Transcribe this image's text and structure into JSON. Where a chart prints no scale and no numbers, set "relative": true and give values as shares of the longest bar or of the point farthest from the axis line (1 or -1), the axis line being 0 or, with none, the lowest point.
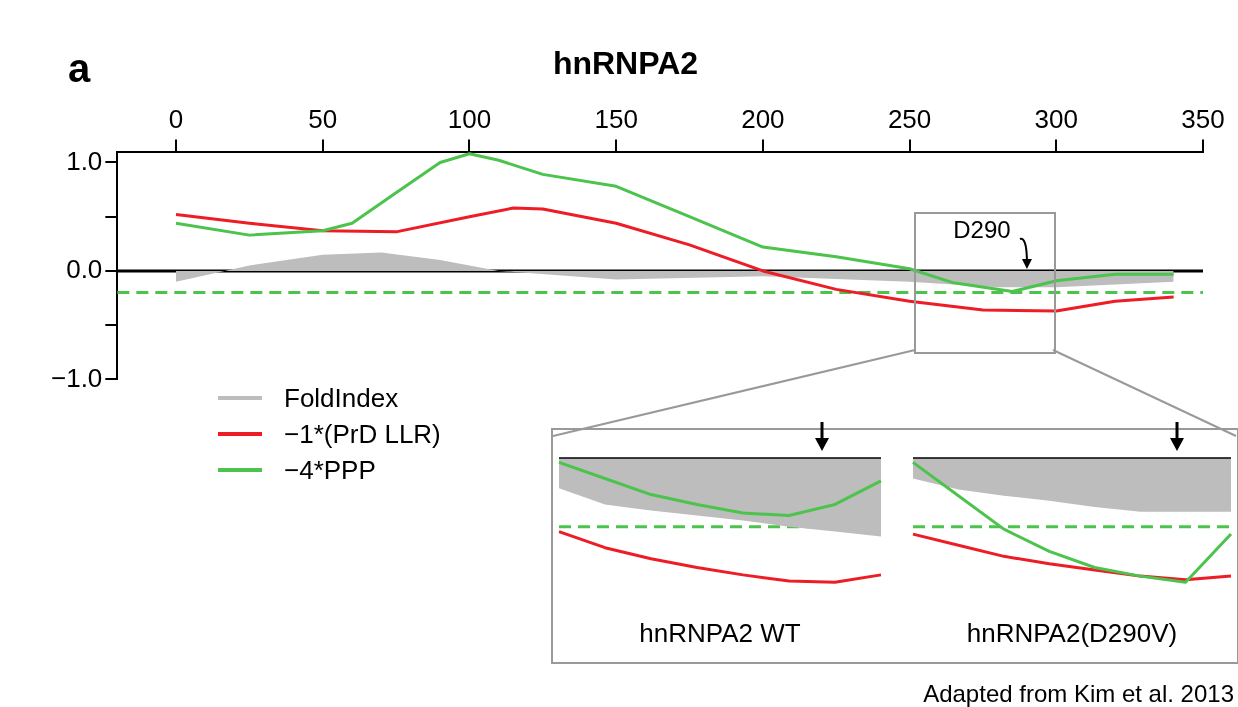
{
  "chart_data": [
    {
      "type": "line",
      "title": "hnRNPA2",
      "annotations": [
        "a",
        {
          "text": "D290",
          "x": 290,
          "y": 0
        },
        "Adapted from Kim et al. 2013"
      ],
      "xlim": [
        -20,
        350
      ],
      "xticks": [
        0,
        50,
        100,
        150,
        200,
        250,
        300,
        350
      ],
      "ylim": [
        -1,
        1.1
      ],
      "yticks": [
        {
          "value": -1,
          "label": "−1.0"
        },
        {
          "value": -0.5,
          "label": null
        },
        {
          "value": 0,
          "label": "0.0"
        },
        {
          "value": 0.5,
          "label": null
        },
        {
          "value": 1,
          "label": "1.0"
        }
      ],
      "grid": false,
      "legend": "bottom left",
      "marker": "none",
      "ref_lines": [
        {
          "axis": "y",
          "value": 0,
          "color": "#000000",
          "line_style": "solid"
        },
        {
          "axis": "y",
          "value": -0.2,
          "color": "#4cc34c",
          "line_style": "dashed"
        }
      ],
      "series": [
        {
          "name": "FoldIndex",
          "type": "area",
          "color": "#bdbdbd",
          "x": [
            0,
            25,
            50,
            70,
            90,
            110,
            150,
            200,
            250,
            280,
            300,
            340
          ],
          "values": [
            -0.1,
            0.05,
            0.15,
            0.17,
            0.1,
            0.0,
            -0.08,
            -0.05,
            -0.1,
            -0.15,
            -0.15,
            -0.1
          ]
        },
        {
          "name": "−1*(PrD LLR)",
          "type": "line",
          "color": "#ee1c25",
          "x": [
            0,
            25,
            50,
            75,
            100,
            115,
            125,
            150,
            175,
            200,
            225,
            250,
            275,
            300,
            320,
            340
          ],
          "values": [
            0.52,
            0.44,
            0.37,
            0.36,
            0.5,
            0.58,
            0.57,
            0.44,
            0.24,
            0,
            -0.17,
            -0.28,
            -0.36,
            -0.37,
            -0.28,
            -0.24
          ]
        },
        {
          "name": "−4*PPP",
          "type": "line",
          "color": "#4cc34c",
          "x": [
            0,
            25,
            50,
            60,
            75,
            90,
            100,
            110,
            125,
            150,
            175,
            200,
            225,
            250,
            265,
            285,
            300,
            320,
            340
          ],
          "values": [
            0.44,
            0.33,
            0.37,
            0.44,
            0.72,
            1.0,
            1.08,
            1.02,
            0.89,
            0.78,
            0.5,
            0.22,
            0.13,
            0.02,
            -0.11,
            -0.19,
            -0.09,
            -0.03,
            -0.03
          ]
        }
      ]
    },
    {
      "type": "line",
      "relative": true,
      "annotations": [
        "hnRNPA2 WT"
      ],
      "categories": [
        null,
        null,
        null,
        null,
        null,
        null,
        null,
        null
      ],
      "marker": "none",
      "ref_lines": [
        {
          "axis": "y",
          "value": 0,
          "color": "#000000",
          "line_style": "solid"
        },
        {
          "axis": "y",
          "value": -0.55,
          "color": "#4cc34c",
          "line_style": "dashed"
        }
      ],
      "series": [
        {
          "type": "area",
          "color": "#bdbdbd",
          "values": [
            -0.24,
            -0.37,
            -0.42,
            -0.46,
            -0.5,
            -0.55,
            -0.59,
            -0.63
          ]
        },
        {
          "type": "line",
          "color": "#ee1c25",
          "values": [
            -0.59,
            -0.72,
            -0.81,
            -0.88,
            -0.94,
            -0.99,
            -1.0,
            -0.94
          ]
        },
        {
          "type": "line",
          "color": "#4cc34c",
          "values": [
            -0.03,
            -0.16,
            -0.29,
            -0.37,
            -0.44,
            -0.46,
            -0.37,
            -0.18
          ]
        }
      ]
    },
    {
      "type": "line",
      "relative": true,
      "annotations": [
        "hnRNPA2(D290V)"
      ],
      "categories": [
        null,
        null,
        null,
        null,
        null,
        null,
        null,
        null
      ],
      "marker": "none",
      "ref_lines": [
        {
          "axis": "y",
          "value": 0,
          "color": "#000000",
          "line_style": "solid"
        },
        {
          "axis": "y",
          "value": -0.55,
          "color": "#4cc34c",
          "line_style": "dashed"
        }
      ],
      "series": [
        {
          "type": "area",
          "color": "#bdbdbd",
          "values": [
            -0.16,
            -0.25,
            -0.3,
            -0.34,
            -0.39,
            -0.43,
            -0.43,
            -0.43
          ]
        },
        {
          "type": "line",
          "color": "#ee1c25",
          "values": [
            -0.61,
            -0.7,
            -0.79,
            -0.85,
            -0.9,
            -0.95,
            -0.98,
            -0.95
          ]
        },
        {
          "type": "line",
          "color": "#4cc34c",
          "values": [
            -0.03,
            -0.3,
            -0.57,
            -0.75,
            -0.88,
            -0.95,
            -1.0,
            -0.61
          ]
        }
      ]
    }
  ]
}
